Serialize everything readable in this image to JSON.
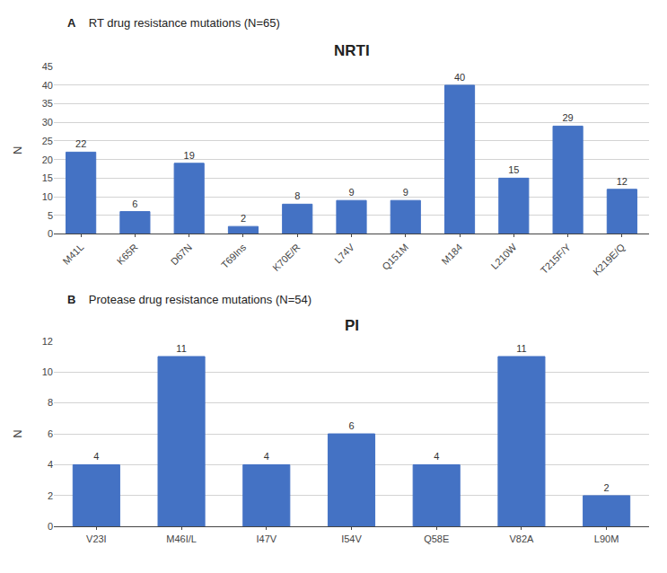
{
  "chart_data": [
    {
      "type": "bar",
      "annotations": [
        "A"
      ],
      "subtitle": "RT drug resistance mutations (N=65)",
      "title": "NRTI",
      "ylabel": "N",
      "categories": [
        "M41L",
        "K65R",
        "D67N",
        "T69Ins",
        "K70E/R",
        "L74V",
        "Q151M",
        "M184",
        "L210W",
        "T215F/Y",
        "K219E/Q"
      ],
      "values": [
        22,
        6,
        19,
        2,
        8,
        9,
        9,
        40,
        15,
        29,
        12
      ],
      "color": "#4472C4",
      "ylim": [
        0,
        45
      ],
      "yticks": [
        0,
        5,
        10,
        15,
        20,
        25,
        30,
        35,
        40,
        45
      ],
      "grid": true,
      "data_labels": true
    },
    {
      "type": "bar",
      "annotations": [
        "B"
      ],
      "subtitle": "Protease drug resistance mutations (N=54)",
      "title": "PI",
      "ylabel": "N",
      "categories": [
        "V23I",
        "M46I/L",
        "I47V",
        "I54V",
        "Q58E",
        "V82A",
        "L90M"
      ],
      "values": [
        4,
        11,
        4,
        6,
        4,
        11,
        2
      ],
      "color": "#4472C4",
      "ylim": [
        0,
        12
      ],
      "yticks": [
        0,
        2,
        4,
        6,
        8,
        10,
        12
      ],
      "grid": true,
      "data_labels": true
    }
  ]
}
